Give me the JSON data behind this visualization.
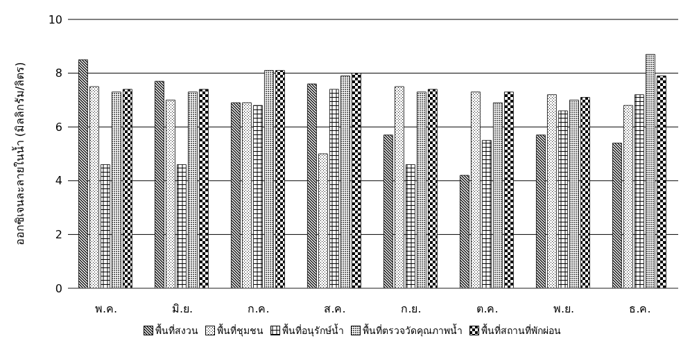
{
  "chart_data": {
    "type": "bar",
    "ylabel": "ออกซิเจนละลายในน้ำ (มิลลิกรัม/ลิตร)",
    "categories": [
      "พ.ค.",
      "มิ.ย.",
      "ก.ค.",
      "ส.ค.",
      "ก.ย.",
      "ต.ค.",
      "พ.ย.",
      "ธ.ค."
    ],
    "series": [
      {
        "name": "พื้นที่สงวน",
        "color": "#000000",
        "values": [
          8.5,
          7.7,
          6.9,
          7.6,
          5.7,
          4.2,
          5.7,
          5.4
        ]
      },
      {
        "name": "พื้นที่ชุมชน",
        "color": "#000000",
        "values": [
          7.5,
          7.0,
          6.9,
          5.0,
          7.5,
          7.3,
          7.2,
          6.8
        ]
      },
      {
        "name": "พื้นที่อนุรักษ์น้ำ",
        "color": "#000000",
        "values": [
          4.6,
          4.6,
          6.8,
          7.4,
          4.6,
          5.5,
          6.6,
          7.2
        ]
      },
      {
        "name": "พื้นที่ตรวจวัดคุณภาพน้ำ",
        "color": "#000000",
        "values": [
          7.3,
          7.3,
          8.1,
          7.9,
          7.3,
          6.9,
          7.0,
          8.7
        ]
      },
      {
        "name": "พื้นที่สถานที่พักผ่อน",
        "color": "#000000",
        "values": [
          7.4,
          7.4,
          8.1,
          8.0,
          7.4,
          7.3,
          7.1,
          7.9
        ]
      }
    ],
    "ylim": [
      0,
      10
    ],
    "yticks": [
      0,
      2,
      4,
      6,
      8,
      10
    ],
    "grid": "y",
    "legend": "bottom"
  }
}
